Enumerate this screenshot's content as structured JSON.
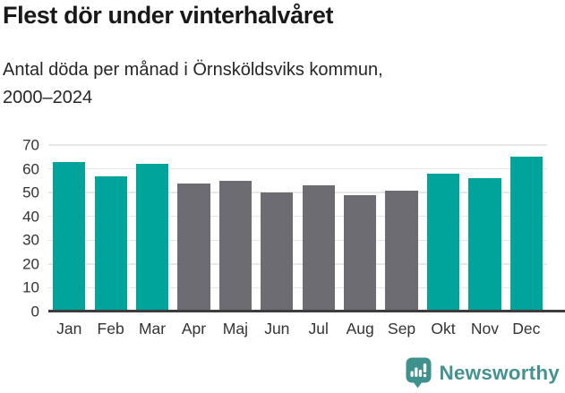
{
  "header": {
    "title": "Flest dör under vinterhalvåret",
    "subtitle_line1": "Antal döda per månad i Örnsköldsviks kommun,",
    "subtitle_line2": "2000–2024"
  },
  "chart_data": {
    "type": "bar",
    "title": "Flest dör under vinterhalvåret",
    "subtitle": "Antal döda per månad i Örnsköldsviks kommun, 2000–2024",
    "categories": [
      "Jan",
      "Feb",
      "Mar",
      "Apr",
      "Maj",
      "Jun",
      "Jul",
      "Aug",
      "Sep",
      "Okt",
      "Nov",
      "Dec"
    ],
    "values": [
      63,
      57,
      62,
      54,
      55,
      50,
      53,
      49,
      51,
      58,
      56,
      65
    ],
    "highlighted": [
      true,
      true,
      true,
      false,
      false,
      false,
      false,
      false,
      false,
      true,
      true,
      true
    ],
    "colors": {
      "winter_bar": "#00a49a",
      "summer_bar": "#6c6c72",
      "axis_line": "#3d3d3d",
      "gridline": "#e7e7e7",
      "tick_label": "#333333"
    },
    "xlabel": "",
    "ylabel": "",
    "ylim": [
      0,
      70
    ],
    "yticks": [
      0,
      10,
      20,
      30,
      40,
      50,
      60,
      70
    ],
    "grid": true,
    "legend_position": "none"
  },
  "footer": {
    "brand": "Newsworthy",
    "brand_color": "#459390",
    "logo_color": "#3e918c",
    "logo_icon": "bar-chart-speech-bubble-icon"
  }
}
